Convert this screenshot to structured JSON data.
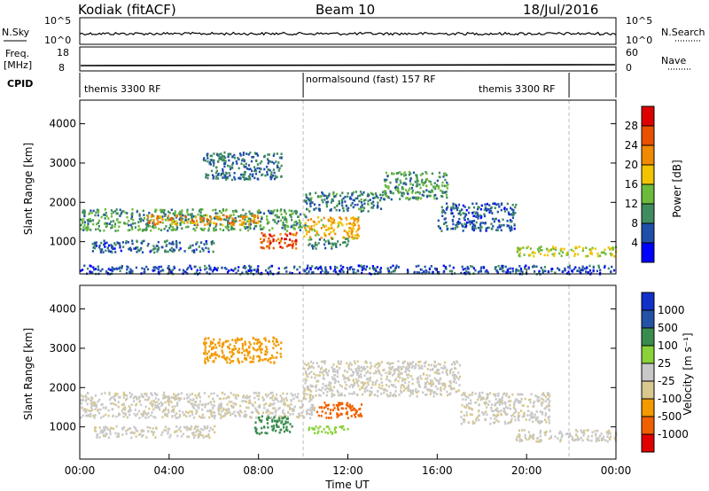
{
  "header": {
    "station": "Kodiak (fitACF)",
    "beam": "Beam 10",
    "date": "18/Jul/2016"
  },
  "noise_panel": {
    "left_label": "N.Sky",
    "right_label": "N.Search",
    "left_ticks": [
      "10^5",
      "10^0"
    ],
    "right_ticks": [
      "10^5",
      "10^0"
    ]
  },
  "freq_panel": {
    "left_label_1": "Freq.",
    "left_label_2": "[MHz]",
    "right_label": "Nave",
    "left_ticks": [
      "18",
      "8"
    ],
    "right_ticks": [
      "60",
      "0"
    ]
  },
  "cpid_panel": {
    "label": "CPID",
    "segments": [
      "themis 3300 RF",
      "normalsound (fast) 157 RF",
      "themis 3300 RF"
    ],
    "boundaries_hours": [
      10.0,
      21.9
    ]
  },
  "colors": {
    "power_scale": [
      "#0000ff",
      "#1f4fa8",
      "#3f8c5e",
      "#6cbb3c",
      "#f2c300",
      "#f08a00",
      "#e95000",
      "#dd0000"
    ],
    "velocity_scale": [
      "#e00000",
      "#f06000",
      "#f39a00",
      "#d8c88e",
      "#c8c8c8",
      "#8ad23a",
      "#3a8c4e",
      "#2452a6",
      "#1030c8"
    ],
    "ground_scatter": "#c0c0c0"
  },
  "chart_data": [
    {
      "type": "heatmap",
      "name": "power",
      "ylabel": "Slant Range [km]",
      "yticks": [
        1000,
        2000,
        3000,
        4000
      ],
      "ylim": [
        180,
        4600
      ],
      "colorbar_label": "Power [dB]",
      "colorbar_ticks": [
        4,
        8,
        12,
        16,
        20,
        24,
        28
      ],
      "colorbar_range": [
        0,
        32
      ],
      "scatter_regions": [
        {
          "t0": 0.0,
          "t1": 10.2,
          "r0": 1300,
          "r1": 1850,
          "value": 11
        },
        {
          "t0": 3.0,
          "t1": 8.0,
          "r0": 1450,
          "r1": 1700,
          "value": 22
        },
        {
          "t0": 8.0,
          "t1": 9.7,
          "r0": 850,
          "r1": 1250,
          "value": 26
        },
        {
          "t0": 10.0,
          "t1": 12.5,
          "r0": 1100,
          "r1": 1650,
          "value": 19
        },
        {
          "t0": 10.2,
          "t1": 12.0,
          "r0": 850,
          "r1": 1100,
          "value": 9
        },
        {
          "t0": 5.5,
          "t1": 9.0,
          "r0": 2600,
          "r1": 3300,
          "value": 8
        },
        {
          "t0": 0.5,
          "t1": 6.0,
          "r0": 750,
          "r1": 1050,
          "value": 7
        },
        {
          "t0": 10.0,
          "t1": 13.5,
          "r0": 1800,
          "r1": 2300,
          "value": 9
        },
        {
          "t0": 13.5,
          "t1": 16.5,
          "r0": 2100,
          "r1": 2800,
          "value": 11
        },
        {
          "t0": 16.0,
          "t1": 19.5,
          "r0": 1300,
          "r1": 2000,
          "value": 7
        },
        {
          "t0": 19.5,
          "t1": 24.0,
          "r0": 650,
          "r1": 900,
          "value": 16
        },
        {
          "t0": 0.0,
          "t1": 24.0,
          "r0": 200,
          "r1": 420,
          "value": 6
        }
      ]
    },
    {
      "type": "heatmap",
      "name": "velocity",
      "xlabel": "Time UT",
      "ylabel": "Slant Range [km]",
      "xticks": [
        "00:00",
        "04:00",
        "08:00",
        "12:00",
        "16:00",
        "20:00",
        "00:00"
      ],
      "xlim_hours": [
        0,
        24
      ],
      "yticks": [
        1000,
        2000,
        3000,
        4000
      ],
      "ylim": [
        180,
        4600
      ],
      "colorbar_label": "Velocity [m s⁻¹]",
      "colorbar_ticks": [
        "1000",
        "500",
        "100",
        "25",
        "-25",
        "-100",
        "-500",
        "-1000"
      ],
      "scatter_regions": [
        {
          "t0": 0.0,
          "t1": 10.5,
          "r0": 1250,
          "r1": 1900,
          "value": 0
        },
        {
          "t0": 7.8,
          "t1": 9.5,
          "r0": 850,
          "r1": 1300,
          "value": 150
        },
        {
          "t0": 10.5,
          "t1": 12.6,
          "r0": 1250,
          "r1": 1650,
          "value": -300
        },
        {
          "t0": 10.2,
          "t1": 12.0,
          "r0": 850,
          "r1": 1050,
          "value": 60
        },
        {
          "t0": 10.0,
          "t1": 17.0,
          "r0": 1800,
          "r1": 2700,
          "value": 0
        },
        {
          "t0": 17.0,
          "t1": 21.0,
          "r0": 1100,
          "r1": 1900,
          "value": 0
        },
        {
          "t0": 19.5,
          "t1": 24.0,
          "r0": 650,
          "r1": 950,
          "value": 0
        },
        {
          "t0": 5.5,
          "t1": 9.0,
          "r0": 2650,
          "r1": 3300,
          "value": -60
        },
        {
          "t0": 0.5,
          "t1": 6.0,
          "r0": 750,
          "r1": 1050,
          "value": 0
        }
      ]
    }
  ]
}
